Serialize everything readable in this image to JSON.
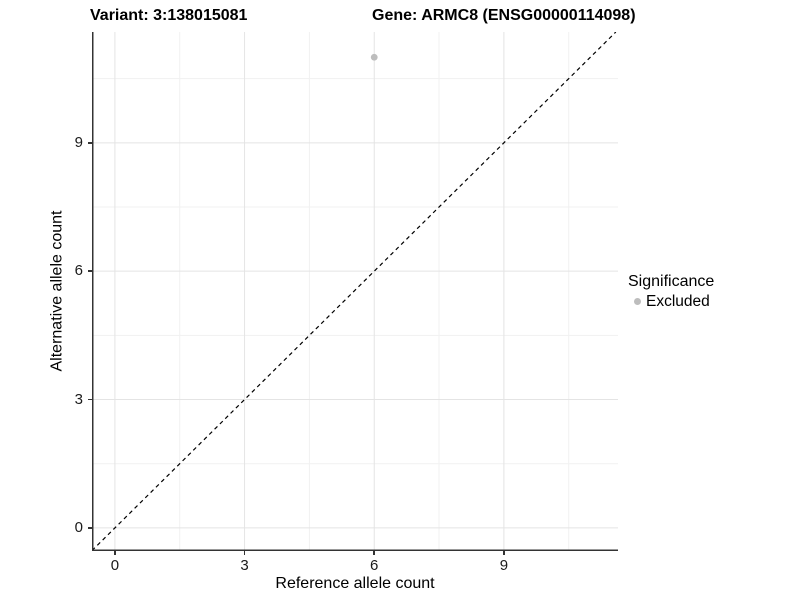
{
  "chart_data": {
    "type": "scatter",
    "titles": {
      "left": "Variant: 3:138015081",
      "right": "Gene: ARMC8 (ENSG00000114098)"
    },
    "xlabel": "Reference allele count",
    "ylabel": "Alternative allele count",
    "xlim": [
      -0.53,
      11.64
    ],
    "ylim": [
      -0.54,
      11.59
    ],
    "xticks": [
      0,
      3,
      6,
      9
    ],
    "yticks": [
      0,
      3,
      6,
      9
    ],
    "xminor": [
      1.5,
      4.5,
      7.5,
      10.5
    ],
    "yminor": [
      1.5,
      4.5,
      7.5,
      10.5
    ],
    "grid": true,
    "reference_line": {
      "equation": "y = x",
      "style": "dashed",
      "color": "#000000"
    },
    "series": [
      {
        "name": "Excluded",
        "color": "#bdbdbd",
        "points": [
          {
            "x": 6,
            "y": 11
          }
        ]
      }
    ],
    "legend": {
      "title": "Significance",
      "position": "right",
      "items": [
        {
          "label": "Excluded",
          "color": "#bdbdbd"
        }
      ]
    }
  },
  "colors": {
    "background": "#ffffff",
    "axis_line": "#333333",
    "tick_label": "#1a1a1a",
    "grid_major": "#e4e4e4",
    "grid_minor": "#f1f1f1"
  }
}
